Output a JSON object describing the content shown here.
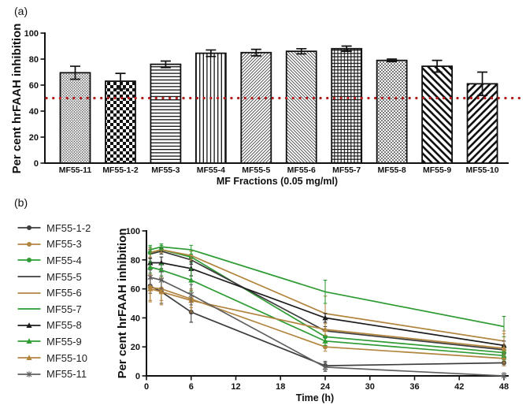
{
  "figure": {
    "panel_a_label": "(a)",
    "panel_b_label": "(b)"
  },
  "chart_data": [
    {
      "type": "bar",
      "panel": "a",
      "categories": [
        "MF55-11",
        "MF55-1-2",
        "MF55-3",
        "MF55-4",
        "MF55-5",
        "MF55-6",
        "MF55-7",
        "MF55-8",
        "MF55-9",
        "MF55-10"
      ],
      "values": [
        69.5,
        63,
        76,
        84.5,
        85,
        86,
        88,
        79,
        74.5,
        61
      ],
      "errors": [
        5,
        6,
        2.5,
        2.5,
        2.5,
        2,
        2,
        1,
        4.5,
        9
      ],
      "bar_patterns": [
        "fine-dots",
        "checkerboard",
        "horizontal-lines",
        "vertical-lines",
        "fine-diagonal-up",
        "fine-diagonal-down",
        "grid-crosshatch",
        "stipple-dots",
        "bold-diagonal-down",
        "bold-diagonal-up"
      ],
      "bar_fill": "#ffffff",
      "bar_stroke": "#111111",
      "xlabel": "MF Fractions (0.05 mg/ml)",
      "ylabel": "Per cent hrFAAH inhibition",
      "ylim": [
        0,
        100
      ],
      "yticks": [
        0,
        20,
        40,
        60,
        80,
        100
      ],
      "grid": "off",
      "reference_line": {
        "y": 50,
        "color": "#b11b1b",
        "style": "dotted"
      }
    },
    {
      "type": "line",
      "panel": "b",
      "x": [
        0.5,
        2,
        6,
        24,
        48
      ],
      "xticks": [
        0,
        6,
        12,
        18,
        24,
        30,
        36,
        42,
        48
      ],
      "yticks": [
        0,
        20,
        40,
        60,
        80,
        100
      ],
      "xlim": [
        0,
        48
      ],
      "ylim": [
        0,
        100
      ],
      "xlabel": "Time (h)",
      "ylabel": "Per cent hrFAAH inhibition",
      "grid": "off",
      "legend_position": "left",
      "series": [
        {
          "name": "MF55-1-2",
          "color": "#3d3d3d",
          "marker": "circle",
          "values": [
            62,
            58,
            44,
            7,
            9
          ],
          "errors": [
            5,
            8,
            7,
            3,
            2
          ]
        },
        {
          "name": "MF55-3",
          "color": "#b2853f",
          "marker": "circle",
          "values": [
            61,
            60,
            53,
            20,
            12
          ],
          "errors": [
            9,
            8,
            6,
            3,
            3
          ]
        },
        {
          "name": "MF55-4",
          "color": "#2e9b33",
          "marker": "circle",
          "values": [
            85,
            87,
            82,
            27,
            16
          ],
          "errors": [
            4,
            3,
            4,
            4,
            3
          ]
        },
        {
          "name": "MF55-5",
          "color": "#3d3d3d",
          "marker": "none",
          "values": [
            84,
            86,
            80,
            31,
            18
          ],
          "errors": [
            3,
            2,
            3,
            3,
            3
          ]
        },
        {
          "name": "MF55-6",
          "color": "#b2853f",
          "marker": "none",
          "values": [
            85,
            87,
            83,
            43,
            24
          ],
          "errors": [
            3,
            2,
            3,
            12,
            5
          ]
        },
        {
          "name": "MF55-7",
          "color": "#2e9b33",
          "marker": "none",
          "values": [
            87,
            89,
            87,
            58,
            34
          ],
          "errors": [
            3,
            2,
            3,
            8,
            7
          ]
        },
        {
          "name": "MF55-8",
          "color": "#1c1c1c",
          "marker": "triangle",
          "values": [
            78,
            78,
            74,
            40,
            21
          ],
          "errors": [
            3,
            4,
            5,
            3,
            3
          ]
        },
        {
          "name": "MF55-9",
          "color": "#2e9b33",
          "marker": "triangle",
          "values": [
            75,
            73,
            66,
            24,
            14
          ],
          "errors": [
            4,
            4,
            8,
            3,
            3
          ]
        },
        {
          "name": "MF55-10",
          "color": "#b2853f",
          "marker": "triangle",
          "values": [
            60,
            58,
            52,
            32,
            19
          ],
          "errors": [
            9,
            9,
            8,
            4,
            12
          ]
        },
        {
          "name": "MF55-11",
          "color": "#5f5f5f",
          "marker": "star",
          "values": [
            68,
            66,
            56,
            6,
            0
          ],
          "errors": [
            5,
            6,
            7,
            3,
            2
          ]
        }
      ]
    }
  ]
}
